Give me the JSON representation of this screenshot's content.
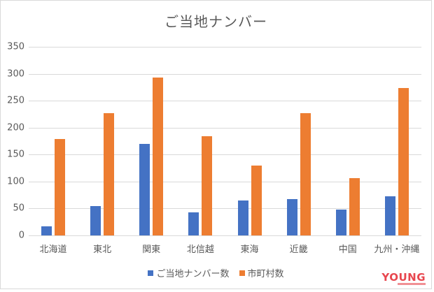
{
  "chart_data": {
    "type": "bar",
    "title": "ご当地ナンバー",
    "xlabel": "",
    "ylabel": "",
    "categories": [
      "北海道",
      "東北",
      "関東",
      "北信越",
      "東海",
      "近畿",
      "中国",
      "九州・沖縄"
    ],
    "series": [
      {
        "name": "ご当地ナンバー数",
        "color": "#4472C4",
        "values": [
          17,
          55,
          170,
          43,
          65,
          68,
          48,
          73
        ]
      },
      {
        "name": "市町村数",
        "color": "#ED7D31",
        "values": [
          179,
          227,
          293,
          184,
          130,
          227,
          106,
          274
        ]
      }
    ],
    "ylim": [
      0,
      350
    ],
    "yticks": [
      0,
      50,
      100,
      150,
      200,
      250,
      300,
      350
    ],
    "grid": true,
    "legend_position": "bottom"
  },
  "colors": {
    "series1": "#4472C4",
    "series2": "#ED7D31",
    "grid": "#D9D9D9",
    "text": "#595959",
    "watermark": "#E8474F"
  },
  "watermark": {
    "text": "YOUNG"
  }
}
